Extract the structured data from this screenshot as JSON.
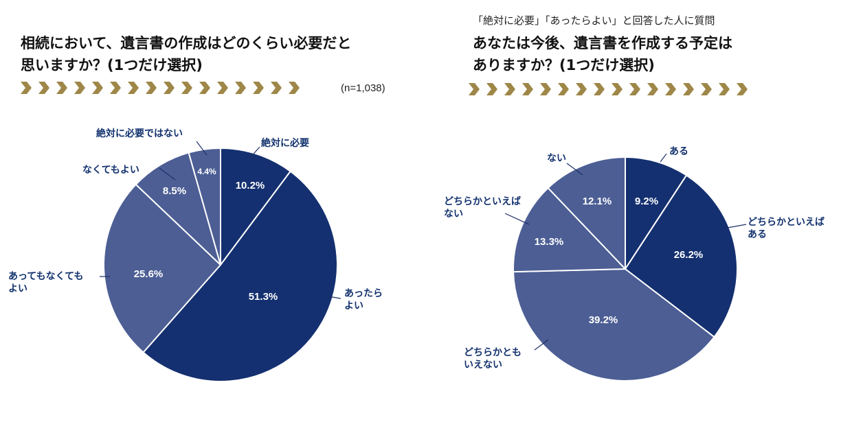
{
  "colors": {
    "dark": "#143070",
    "mid": "#4C5E94",
    "label": "#13326E",
    "chevron": "#9E8748",
    "slice_border": "#ffffff",
    "text_on_slice": "#ffffff"
  },
  "left": {
    "title_lines": [
      "相続において、遺言書の作成はどのくらい必要だと",
      "思いますか？(1つだけ選択)"
    ],
    "sample": "(n=1,038)",
    "decoration_icon": "chevron-arrows-icon"
  },
  "right": {
    "subtitle": "「絶対に必要」「あったらよい」と回答した人に質問",
    "title_lines": [
      "あなたは今後、遺言書を作成する予定は",
      "ありますか？(1つだけ選択)"
    ],
    "decoration_icon": "chevron-arrows-icon"
  },
  "chart_data": [
    {
      "type": "pie",
      "title": "相続において、遺言書の作成はどのくらい必要だと思いますか？(1つだけ選択)",
      "n": "(n=1,038)",
      "start": "12 o'clock",
      "direction": "clockwise",
      "slices": [
        {
          "label_lines": [
            "絶対に必要"
          ],
          "value": 10.2,
          "display": "10.2%",
          "color": "dark"
        },
        {
          "label_lines": [
            "あったら",
            "よい"
          ],
          "value": 51.3,
          "display": "51.3%",
          "color": "dark"
        },
        {
          "label_lines": [
            "あってもなくても",
            "よい"
          ],
          "value": 25.6,
          "display": "25.6%",
          "color": "mid"
        },
        {
          "label_lines": [
            "なくてもよい"
          ],
          "value": 8.5,
          "display": "8.5%",
          "color": "mid"
        },
        {
          "label_lines": [
            "絶対に必要ではない"
          ],
          "value": 4.4,
          "display": "4.4%",
          "color": "mid"
        }
      ]
    },
    {
      "type": "pie",
      "title": "あなたは今後、遺言書を作成する予定はありますか？(1つだけ選択)",
      "start": "12 o'clock",
      "direction": "clockwise",
      "slices": [
        {
          "label_lines": [
            "ある"
          ],
          "value": 9.2,
          "display": "9.2%",
          "color": "dark"
        },
        {
          "label_lines": [
            "どちらかといえば",
            "ある"
          ],
          "value": 26.2,
          "display": "26.2%",
          "color": "dark"
        },
        {
          "label_lines": [
            "どちらかとも",
            "いえない"
          ],
          "value": 39.2,
          "display": "39.2%",
          "color": "mid"
        },
        {
          "label_lines": [
            "どちらかといえば",
            "ない"
          ],
          "value": 13.3,
          "display": "13.3%",
          "color": "mid"
        },
        {
          "label_lines": [
            "ない"
          ],
          "value": 12.1,
          "display": "12.1%",
          "color": "mid"
        }
      ]
    }
  ]
}
